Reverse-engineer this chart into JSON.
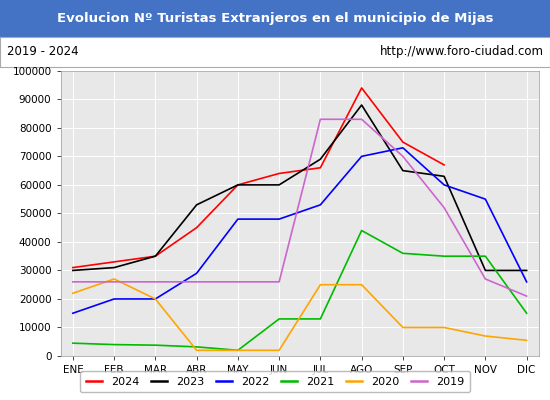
{
  "title": "Evolucion Nº Turistas Extranjeros en el municipio de Mijas",
  "subtitle_left": "2019 - 2024",
  "subtitle_right": "http://www.foro-ciudad.com",
  "title_bg_color": "#4472c4",
  "title_text_color": "#ffffff",
  "subtitle_bg_color": "#ffffff",
  "subtitle_text_color": "#000000",
  "plot_bg_color": "#e8e8e8",
  "months": [
    "ENE",
    "FEB",
    "MAR",
    "ABR",
    "MAY",
    "JUN",
    "JUL",
    "AGO",
    "SEP",
    "OCT",
    "NOV",
    "DIC"
  ],
  "series": {
    "2024": {
      "color": "#ff0000",
      "values": [
        31000,
        33000,
        35000,
        45000,
        60000,
        64000,
        66000,
        94000,
        75000,
        67000,
        null,
        null
      ]
    },
    "2023": {
      "color": "#000000",
      "values": [
        30000,
        31000,
        35000,
        53000,
        60000,
        60000,
        69000,
        88000,
        65000,
        63000,
        30000,
        30000
      ]
    },
    "2022": {
      "color": "#0000ff",
      "values": [
        15000,
        20000,
        20000,
        29000,
        48000,
        48000,
        53000,
        70000,
        73000,
        60000,
        55000,
        26000
      ]
    },
    "2021": {
      "color": "#00bb00",
      "values": [
        4500,
        4000,
        3800,
        3200,
        2000,
        13000,
        13000,
        44000,
        36000,
        35000,
        35000,
        15000
      ]
    },
    "2020": {
      "color": "#ffa500",
      "values": [
        22000,
        27000,
        20000,
        2000,
        2000,
        2000,
        25000,
        25000,
        10000,
        10000,
        7000,
        5500
      ]
    },
    "2019": {
      "color": "#cc66cc",
      "values": [
        26000,
        26000,
        26000,
        26000,
        26000,
        26000,
        83000,
        83000,
        70000,
        52000,
        27000,
        21000
      ]
    }
  },
  "ylim": [
    0,
    100000
  ],
  "yticks": [
    0,
    10000,
    20000,
    30000,
    40000,
    50000,
    60000,
    70000,
    80000,
    90000,
    100000
  ],
  "legend_order": [
    "2024",
    "2023",
    "2022",
    "2021",
    "2020",
    "2019"
  ]
}
